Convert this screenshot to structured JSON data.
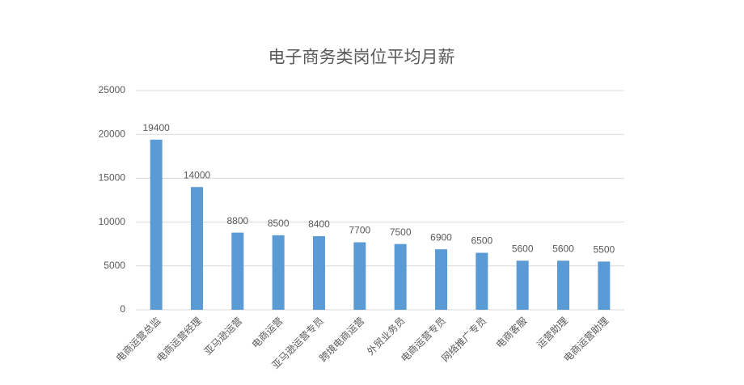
{
  "chart_data": {
    "type": "bar",
    "title": "电子商务类岗位平均月薪",
    "categories": [
      "电商运营总监",
      "电商运营经理",
      "亚马逊运营",
      "电商运营",
      "亚马逊运营专员",
      "跨境电商运营",
      "外贸业务员",
      "电商运营专员",
      "网络推广专员",
      "电商客服",
      "运营助理",
      "电商运营助理"
    ],
    "values": [
      19400,
      14000,
      8800,
      8500,
      8400,
      7700,
      7500,
      6900,
      6500,
      5600,
      5600,
      5500
    ],
    "color": "#5b9bd5",
    "ylim": [
      0,
      25000
    ],
    "yticks": [
      0,
      5000,
      10000,
      15000,
      20000,
      25000
    ],
    "grid": true,
    "data_labels": true
  }
}
